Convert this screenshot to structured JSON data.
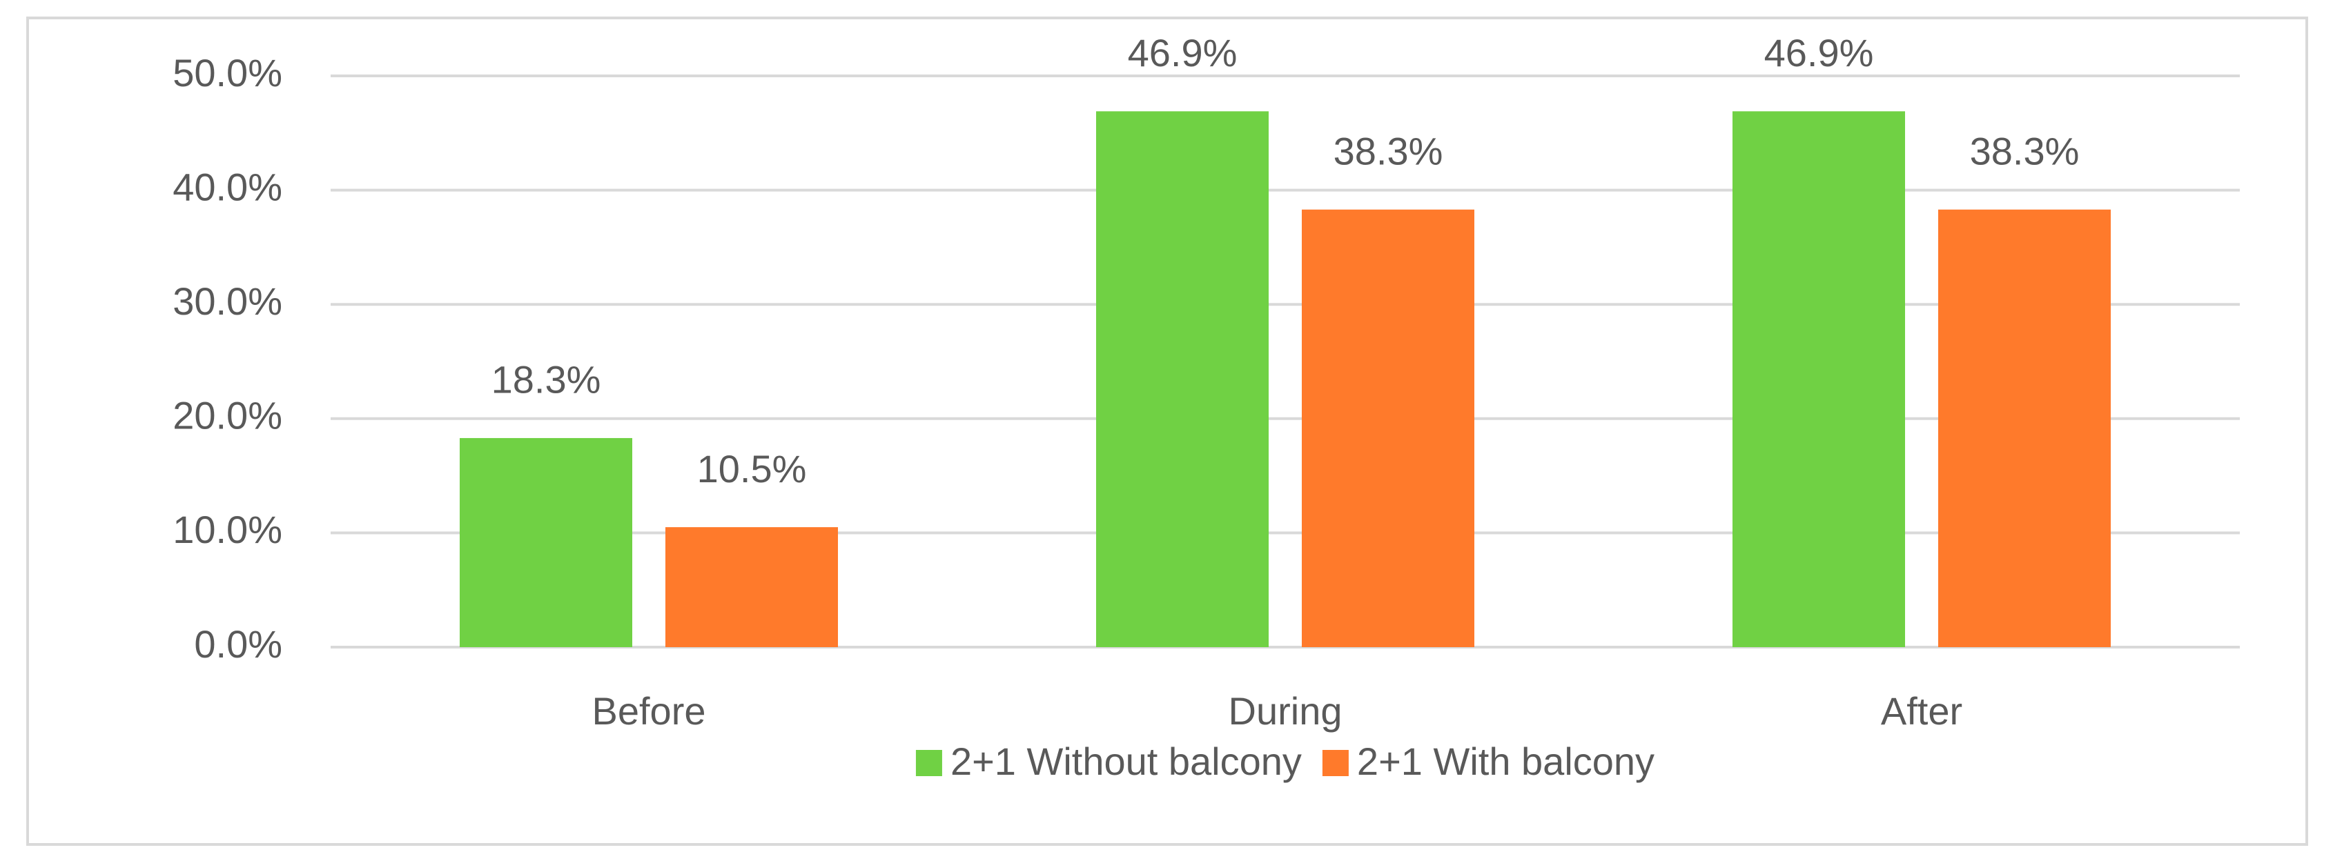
{
  "chart_data": {
    "type": "bar",
    "categories": [
      "Before",
      "During",
      "After"
    ],
    "series": [
      {
        "name": "2+1 Without balcony",
        "color": "#70d144",
        "values": [
          18.3,
          46.9,
          46.9
        ],
        "value_labels": [
          "18.3%",
          "46.9%",
          "46.9%"
        ]
      },
      {
        "name": "2+1 With balcony",
        "color": "#ff7a2b",
        "values": [
          10.5,
          38.3,
          38.3
        ],
        "value_labels": [
          "10.5%",
          "38.3%",
          "38.3%"
        ]
      }
    ],
    "ylim": [
      0,
      50
    ],
    "yticks": [
      {
        "value": 0,
        "label": "0.0%"
      },
      {
        "value": 10,
        "label": "10.0%"
      },
      {
        "value": 20,
        "label": "20.0%"
      },
      {
        "value": 30,
        "label": "30.0%"
      },
      {
        "value": 40,
        "label": "40.0%"
      },
      {
        "value": 50,
        "label": "50.0%"
      }
    ],
    "grid": true,
    "legend": "bottom"
  }
}
